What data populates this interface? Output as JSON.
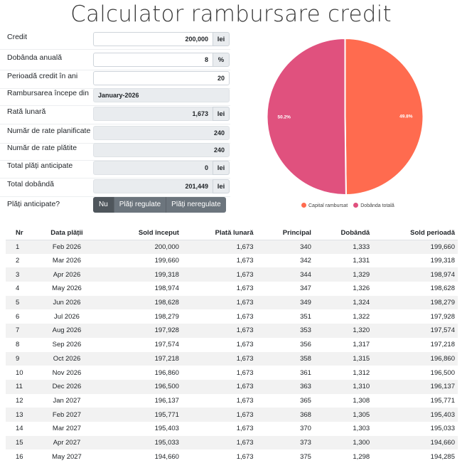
{
  "page": {
    "title": "Calculator rambursare credit"
  },
  "form": {
    "credit": {
      "label": "Credit",
      "value": "200,000",
      "unit": "lei"
    },
    "dobanda": {
      "label": "Dobânda anuală",
      "value": "8",
      "unit": "%"
    },
    "perioada": {
      "label": "Perioadă credit în ani",
      "value": "20"
    },
    "inceput": {
      "label": "Rambursarea începe din",
      "value": "January-2026"
    },
    "rata": {
      "label": "Rată lunară",
      "value": "1,673",
      "unit": "lei"
    },
    "rate_planificate": {
      "label": "Număr de rate planificate",
      "value": "240"
    },
    "rate_platite": {
      "label": "Număr de rate plătite",
      "value": "240"
    },
    "plati_anticipate_total": {
      "label": "Total plăți anticipate",
      "value": "0",
      "unit": "lei"
    },
    "total_dobanda": {
      "label": "Total dobândă",
      "value": "201,449",
      "unit": "lei"
    },
    "plati_anticipate": {
      "label": "Plăți anticipate?",
      "options": [
        "Nu",
        "Plăți regulate",
        "Plăți neregulate"
      ],
      "selected": "Nu"
    }
  },
  "chart_data": {
    "type": "pie",
    "slices": [
      {
        "name": "Capital rambursat",
        "value": 49.8,
        "label": "49.8%",
        "color": "#ff6b4f"
      },
      {
        "name": "Dobânda totală",
        "value": 50.2,
        "label": "50.2%",
        "color": "#e0517e"
      }
    ],
    "legend": "bottom"
  },
  "table": {
    "headers": [
      "Nr",
      "Data plății",
      "Sold început",
      "Plată lunară",
      "Principal",
      "Dobândă",
      "Sold perioadă"
    ],
    "rows": [
      [
        "1",
        "Feb 2026",
        "200,000",
        "1,673",
        "340",
        "1,333",
        "199,660"
      ],
      [
        "2",
        "Mar 2026",
        "199,660",
        "1,673",
        "342",
        "1,331",
        "199,318"
      ],
      [
        "3",
        "Apr 2026",
        "199,318",
        "1,673",
        "344",
        "1,329",
        "198,974"
      ],
      [
        "4",
        "May 2026",
        "198,974",
        "1,673",
        "347",
        "1,326",
        "198,628"
      ],
      [
        "5",
        "Jun 2026",
        "198,628",
        "1,673",
        "349",
        "1,324",
        "198,279"
      ],
      [
        "6",
        "Jul 2026",
        "198,279",
        "1,673",
        "351",
        "1,322",
        "197,928"
      ],
      [
        "7",
        "Aug 2026",
        "197,928",
        "1,673",
        "353",
        "1,320",
        "197,574"
      ],
      [
        "8",
        "Sep 2026",
        "197,574",
        "1,673",
        "356",
        "1,317",
        "197,218"
      ],
      [
        "9",
        "Oct 2026",
        "197,218",
        "1,673",
        "358",
        "1,315",
        "196,860"
      ],
      [
        "10",
        "Nov 2026",
        "196,860",
        "1,673",
        "361",
        "1,312",
        "196,500"
      ],
      [
        "11",
        "Dec 2026",
        "196,500",
        "1,673",
        "363",
        "1,310",
        "196,137"
      ],
      [
        "12",
        "Jan 2027",
        "196,137",
        "1,673",
        "365",
        "1,308",
        "195,771"
      ],
      [
        "13",
        "Feb 2027",
        "195,771",
        "1,673",
        "368",
        "1,305",
        "195,403"
      ],
      [
        "14",
        "Mar 2027",
        "195,403",
        "1,673",
        "370",
        "1,303",
        "195,033"
      ],
      [
        "15",
        "Apr 2027",
        "195,033",
        "1,673",
        "373",
        "1,300",
        "194,660"
      ],
      [
        "16",
        "May 2027",
        "194,660",
        "1,673",
        "375",
        "1,298",
        "194,285"
      ]
    ]
  }
}
